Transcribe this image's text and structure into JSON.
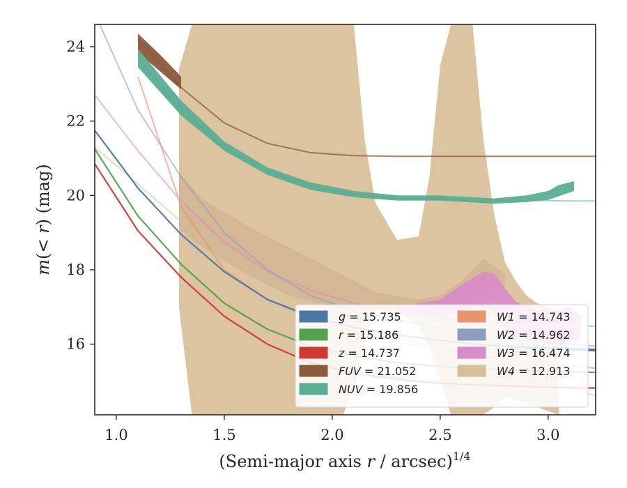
{
  "chart_data": {
    "type": "line",
    "title": "",
    "xlabel": "(Semi-major axis r / arcsec)",
    "xlabel_parts": {
      "pre": "(Semi-major axis ",
      "var": "r",
      "post": " / arcsec)",
      "sup": "1/4"
    },
    "ylabel": "m(< r) (mag)",
    "ylabel_parts": {
      "var": "m",
      "open": "(",
      "inner": "< r",
      "close": ")",
      "unit": " (mag)"
    },
    "xlim": [
      0.9,
      3.22
    ],
    "ylim": [
      24.6,
      14.1
    ],
    "y_inverted": true,
    "xticks": [
      1.0,
      1.5,
      2.0,
      2.5,
      3.0
    ],
    "xtick_labels": [
      "1.0",
      "1.5",
      "2.0",
      "2.5",
      "3.0"
    ],
    "yticks": [
      16,
      18,
      20,
      22,
      24
    ],
    "ytick_labels": [
      "16",
      "18",
      "20",
      "22",
      "24"
    ],
    "grid": false,
    "legend_position": "lower-right",
    "legend_columns": 2,
    "series": [
      {
        "name": "g",
        "value": "15.735",
        "color": "#4c78a8",
        "curve": {
          "x": [
            0.9,
            1.1,
            1.3,
            1.5,
            1.7,
            1.9,
            2.1,
            2.3,
            2.5,
            2.7,
            2.9,
            3.1,
            3.22
          ],
          "y": [
            21.75,
            20.2,
            18.95,
            17.95,
            17.2,
            16.75,
            16.45,
            16.25,
            16.1,
            15.98,
            15.9,
            15.85,
            15.83
          ]
        },
        "band": {
          "x": [
            2.75,
            2.85,
            2.95,
            3.05,
            3.15,
            3.22
          ],
          "y_upper": [
            15.93,
            15.92,
            15.88,
            15.85,
            15.82,
            15.8
          ],
          "y_lower": [
            15.98,
            15.96,
            15.94,
            15.91,
            15.9,
            15.88
          ]
        }
      },
      {
        "name": "r",
        "value": "15.186",
        "color": "#54a24b",
        "curve": {
          "x": [
            0.9,
            1.1,
            1.3,
            1.5,
            1.7,
            1.9,
            2.1,
            2.3,
            2.5,
            2.7,
            2.9,
            3.1,
            3.22
          ],
          "y": [
            21.25,
            19.45,
            18.15,
            17.1,
            16.4,
            15.95,
            15.68,
            15.5,
            15.4,
            15.33,
            15.28,
            15.26,
            15.24
          ]
        }
      },
      {
        "name": "z",
        "value": "14.737",
        "color": "#d03a33",
        "curve": {
          "x": [
            0.9,
            1.1,
            1.3,
            1.5,
            1.7,
            1.9,
            2.1,
            2.3,
            2.5,
            2.7,
            2.9,
            3.1,
            3.22
          ],
          "y": [
            20.85,
            19.05,
            17.8,
            16.75,
            16.0,
            15.5,
            15.22,
            15.05,
            14.95,
            14.9,
            14.86,
            14.83,
            14.82
          ]
        }
      },
      {
        "name": "FUV",
        "value": "21.052",
        "color": "#8b5a3c",
        "curve": {
          "x": [
            1.1,
            1.3,
            1.5,
            1.7,
            1.9,
            2.1,
            2.3,
            2.5,
            2.7,
            2.9,
            3.1,
            3.22
          ],
          "y": [
            24.2,
            22.9,
            21.95,
            21.4,
            21.15,
            21.07,
            21.05,
            21.05,
            21.05,
            21.05,
            21.05,
            21.05
          ]
        },
        "band": {
          "x": [
            1.1,
            1.2,
            1.3
          ],
          "y_upper": [
            23.85,
            23.35,
            22.85
          ],
          "y_lower": [
            24.35,
            23.8,
            23.2
          ]
        }
      },
      {
        "name": "NUV",
        "value": "19.856",
        "color": "#5aae94",
        "curve": {
          "x": [
            1.1,
            1.3,
            1.5,
            1.7,
            1.9,
            2.1,
            2.3,
            2.5,
            2.7,
            2.9,
            3.0,
            3.1,
            3.22
          ],
          "y": [
            23.7,
            22.3,
            21.3,
            20.65,
            20.25,
            20.02,
            19.93,
            19.9,
            19.87,
            19.86,
            19.86,
            19.85,
            19.85
          ]
        },
        "band": {
          "x": [
            1.1,
            1.3,
            1.5,
            1.7,
            1.9,
            2.1,
            2.3,
            2.5,
            2.75,
            2.9,
            3.0,
            3.05,
            3.12
          ],
          "y_upper": [
            23.45,
            22.15,
            21.2,
            20.55,
            20.15,
            19.95,
            19.86,
            19.86,
            19.78,
            19.82,
            19.88,
            19.98,
            20.12
          ],
          "y_lower": [
            23.95,
            22.55,
            21.45,
            20.75,
            20.35,
            20.12,
            20.0,
            20.0,
            19.92,
            20.0,
            20.12,
            20.28,
            20.38
          ]
        }
      },
      {
        "name": "W1",
        "value": "14.743",
        "color": "#e8946c",
        "curve": {
          "x": [
            1.1,
            1.3,
            1.5,
            1.7,
            1.9,
            2.1,
            2.3,
            2.5,
            2.7,
            2.9,
            3.1,
            3.22
          ],
          "y": [
            23.2,
            19.7,
            18.0,
            17.2,
            16.7,
            16.35,
            16.05,
            15.85,
            15.7,
            15.55,
            15.42,
            15.35
          ]
        }
      },
      {
        "name": "W2",
        "value": "14.962",
        "color": "#8d9dc2",
        "curve": {
          "x": [
            0.9,
            1.1,
            1.3,
            1.5,
            1.7,
            1.9,
            2.1,
            2.3,
            2.5,
            2.7,
            2.9,
            3.1,
            3.22
          ],
          "y": [
            24.9,
            22.3,
            20.5,
            19.0,
            18.0,
            17.3,
            16.9,
            16.65,
            16.45,
            16.3,
            16.15,
            16.0,
            15.95
          ]
        }
      },
      {
        "name": "W3",
        "value": "16.474",
        "color": "#d98cc7",
        "curve": {
          "x": [
            0.9,
            1.1,
            1.3,
            1.5,
            1.7,
            1.9,
            2.1,
            2.3,
            2.5,
            2.7,
            2.9,
            3.1,
            3.22
          ],
          "y": [
            22.7,
            21.2,
            19.85,
            18.75,
            17.95,
            17.45,
            17.1,
            16.85,
            16.7,
            16.6,
            16.52,
            16.49,
            16.48
          ]
        },
        "band": {
          "x": [
            2.3,
            2.4,
            2.5,
            2.6,
            2.7,
            2.75,
            2.8,
            2.85,
            2.9,
            2.95,
            3.0,
            3.05,
            3.1,
            3.15
          ],
          "y_upper": [
            16.85,
            16.8,
            16.75,
            16.9,
            17.0,
            16.85,
            16.4,
            16.2,
            16.05,
            16.1,
            16.0,
            15.95,
            16.1,
            16.1
          ],
          "y_lower": [
            16.95,
            17.1,
            17.2,
            17.6,
            17.95,
            17.9,
            17.5,
            17.15,
            17.0,
            16.9,
            16.95,
            16.9,
            17.0,
            16.75
          ]
        }
      },
      {
        "name": "W4",
        "value": "12.913",
        "color": "#d8be96",
        "curve": {
          "x": [
            0.9,
            1.1,
            1.3,
            1.5,
            1.7,
            1.9,
            2.1,
            2.3,
            2.5,
            2.7,
            2.9,
            3.1,
            3.22
          ],
          "y": [
            21.3,
            20.3,
            19.3,
            18.4,
            17.7,
            17.1,
            16.6,
            16.2,
            15.85,
            15.5,
            15.2,
            14.85,
            14.6
          ]
        },
        "band": {
          "x": [
            1.29,
            1.35,
            1.45,
            1.55,
            1.65,
            1.75,
            1.85,
            1.95,
            2.0,
            2.05,
            2.1,
            2.15,
            2.2,
            2.3,
            2.4,
            2.45,
            2.5,
            2.55,
            2.6,
            2.65,
            2.7,
            2.75,
            2.8,
            2.85,
            2.9,
            2.95,
            3.0,
            3.05
          ],
          "y_upper": [
            17.0,
            14.1,
            14.1,
            14.1,
            14.1,
            14.1,
            14.1,
            14.1,
            14.1,
            14.1,
            14.8,
            16.0,
            17.0,
            16.9,
            16.5,
            15.9,
            15.0,
            14.1,
            14.1,
            14.1,
            14.1,
            14.3,
            14.6,
            14.5,
            14.4,
            14.3,
            14.2,
            14.1
          ],
          "y_lower": [
            23.4,
            24.6,
            24.6,
            24.6,
            24.6,
            24.6,
            24.6,
            24.6,
            24.6,
            24.6,
            24.6,
            21.5,
            19.8,
            18.8,
            18.9,
            20.5,
            23.5,
            24.6,
            24.6,
            24.6,
            21.5,
            19.5,
            18.2,
            17.7,
            17.3,
            17.1,
            17.0,
            16.8
          ]
        }
      }
    ],
    "w4_inner_band": {
      "x": [
        1.29,
        1.4,
        1.6,
        1.8,
        2.0,
        2.2,
        2.4,
        2.5,
        2.6,
        2.7,
        2.8
      ],
      "y_upper": [
        19.1,
        18.6,
        17.9,
        17.3,
        17.0,
        16.9,
        16.8,
        16.8,
        16.9,
        17.4,
        17.4
      ],
      "y_lower": [
        20.6,
        19.9,
        19.2,
        18.6,
        18.0,
        17.4,
        17.2,
        17.3,
        17.7,
        18.3,
        17.9
      ]
    }
  }
}
